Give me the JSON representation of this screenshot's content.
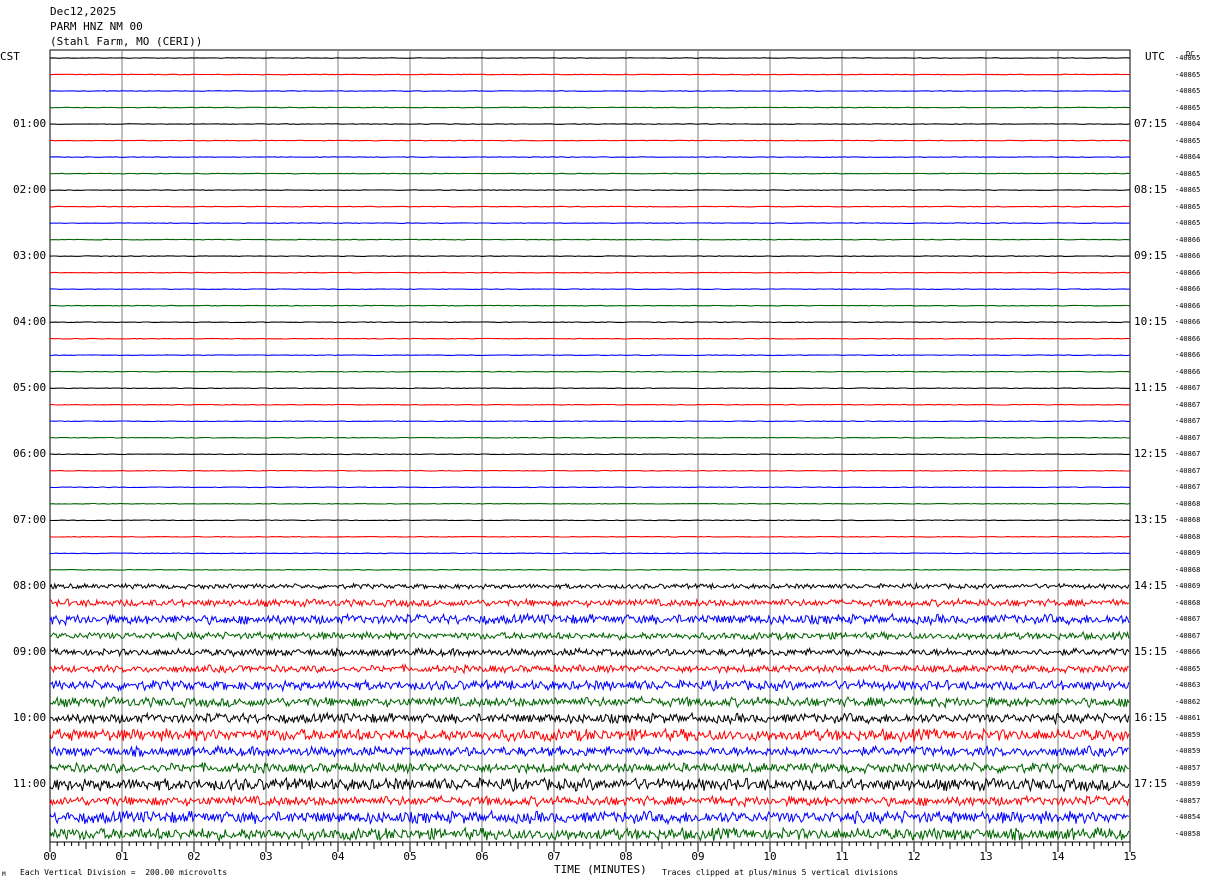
{
  "header": {
    "date": "Dec12,2025",
    "station": "PARM HNZ NM 00",
    "location": "(Stahl Farm, MO (CERI))"
  },
  "left_tz": "CST",
  "right_tz": "UTC",
  "dc_header": "DC",
  "chart_data": {
    "type": "line",
    "xlabel": "TIME (MINUTES)",
    "xlim": [
      0,
      15
    ],
    "x_ticks": [
      "00",
      "01",
      "02",
      "03",
      "04",
      "05",
      "06",
      "07",
      "08",
      "09",
      "10",
      "11",
      "12",
      "13",
      "14",
      "15"
    ],
    "left_hour_labels": [
      "01:00",
      "02:00",
      "03:00",
      "04:00",
      "05:00",
      "06:00",
      "07:00",
      "08:00",
      "09:00",
      "10:00",
      "11:00"
    ],
    "right_hour_labels": [
      "07:15",
      "08:15",
      "09:15",
      "10:15",
      "11:15",
      "12:15",
      "13:15",
      "14:15",
      "15:15",
      "16:15",
      "17:15"
    ],
    "trace_colors": [
      "#000000",
      "#ff0000",
      "#0000ff",
      "#006400"
    ],
    "dc_offsets": [
      "-40865",
      "-40865",
      "-40865",
      "-40865",
      "-40864",
      "-40865",
      "-40864",
      "-40865",
      "-40865",
      "-40865",
      "-40865",
      "-40866",
      "-40866",
      "-40866",
      "-40866",
      "-40866",
      "-40866",
      "-40866",
      "-40866",
      "-40866",
      "-40867",
      "-40867",
      "-40867",
      "-40867",
      "-40867",
      "-40867",
      "-40867",
      "-40868",
      "-40868",
      "-40868",
      "-40869",
      "-40868",
      "-40869",
      "-40868",
      "-40867",
      "-40867",
      "-40866",
      "-40865",
      "-40863",
      "-40862",
      "-40861",
      "-40859",
      "-40859",
      "-40857",
      "-40859",
      "-40857",
      "-40854",
      "-40858"
    ],
    "trace_amplitude": [
      1,
      1,
      1,
      1,
      1,
      1,
      1,
      1,
      1,
      1,
      1,
      1,
      1,
      1,
      1,
      1,
      1,
      1,
      1,
      1,
      1,
      1,
      1,
      1,
      1,
      1,
      1,
      1,
      1,
      1,
      1,
      1,
      2,
      3,
      4,
      3,
      3,
      3,
      4,
      4,
      4,
      5,
      4,
      4,
      5,
      4,
      5,
      5
    ]
  },
  "footer": {
    "scale_note": "Each Vertical Division =  200.00 microvolts",
    "clip_note": "Traces clipped at plus/minus 5 vertical divisions",
    "corner_mark": "M"
  }
}
